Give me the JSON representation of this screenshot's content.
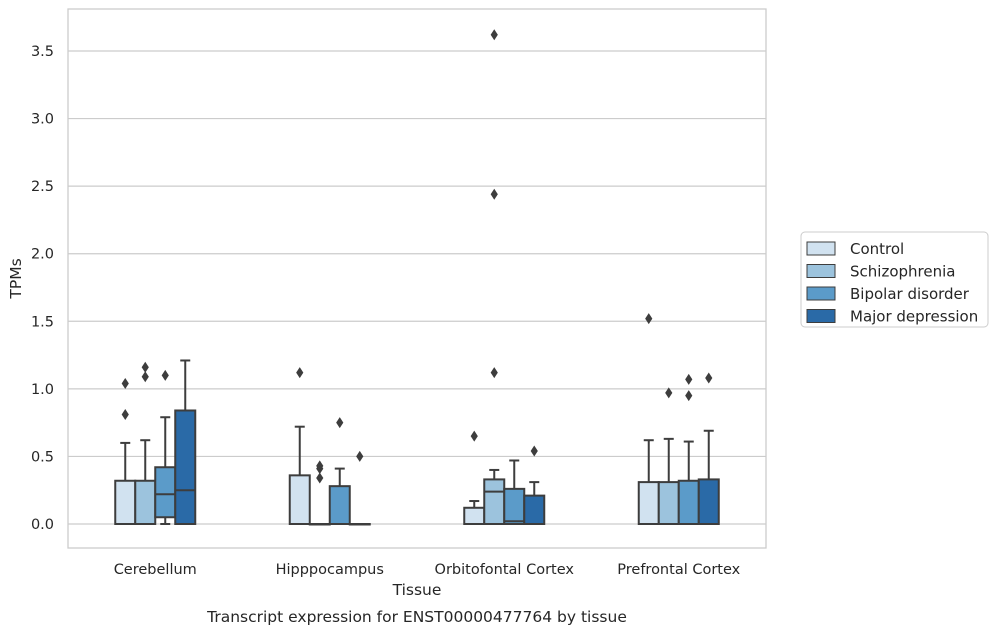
{
  "chart_data": {
    "type": "boxplot",
    "title": "Transcript expression for ENST00000477764 by tissue",
    "xlabel": "Tissue",
    "ylabel": "TPMs",
    "ylim": [
      -0.18,
      3.82
    ],
    "yticks": [
      0.0,
      0.5,
      1.0,
      1.5,
      2.0,
      2.5,
      3.0,
      3.5
    ],
    "ytick_labels": [
      "0.0",
      "0.5",
      "1.0",
      "1.5",
      "2.0",
      "2.5",
      "3.0",
      "3.5"
    ],
    "grid": true,
    "legend_position": "right",
    "categories": [
      "Cerebellum",
      "Hipppocampus",
      "Orbitofontal Cortex",
      "Prefrontal Cortex"
    ],
    "series": [
      {
        "name": "Control",
        "color": "#d1e2f0",
        "boxes": [
          {
            "min": 0.0,
            "q1": 0.0,
            "median": 0.0,
            "q3": 0.32,
            "max": 0.6,
            "outliers": [
              0.81,
              1.04
            ]
          },
          {
            "min": 0.0,
            "q1": 0.0,
            "median": 0.0,
            "q3": 0.36,
            "max": 0.72,
            "outliers": [
              1.12
            ]
          },
          {
            "min": 0.0,
            "q1": 0.0,
            "median": 0.0,
            "q3": 0.12,
            "max": 0.17,
            "outliers": [
              0.65
            ]
          },
          {
            "min": 0.0,
            "q1": 0.0,
            "median": 0.0,
            "q3": 0.31,
            "max": 0.62,
            "outliers": [
              1.52
            ]
          }
        ]
      },
      {
        "name": "Schizophrenia",
        "color": "#9cc3dd",
        "boxes": [
          {
            "min": 0.0,
            "q1": 0.0,
            "median": 0.0,
            "q3": 0.32,
            "max": 0.62,
            "outliers": [
              1.09,
              1.16
            ]
          },
          {
            "min": 0.0,
            "q1": 0.0,
            "median": 0.0,
            "q3": 0.0,
            "max": 0.0,
            "outliers": [
              0.34,
              0.41,
              0.43
            ]
          },
          {
            "min": 0.0,
            "q1": 0.0,
            "median": 0.24,
            "q3": 0.33,
            "max": 0.4,
            "outliers": [
              1.12,
              2.44,
              3.62
            ]
          },
          {
            "min": 0.0,
            "q1": 0.0,
            "median": 0.0,
            "q3": 0.31,
            "max": 0.63,
            "outliers": [
              0.97
            ]
          }
        ]
      },
      {
        "name": "Bipolar disorder",
        "color": "#5b9bc9",
        "boxes": [
          {
            "min": 0.0,
            "q1": 0.05,
            "median": 0.22,
            "q3": 0.42,
            "max": 0.79,
            "outliers": [
              1.1
            ]
          },
          {
            "min": 0.0,
            "q1": 0.0,
            "median": 0.0,
            "q3": 0.28,
            "max": 0.41,
            "outliers": [
              0.75
            ]
          },
          {
            "min": 0.0,
            "q1": 0.0,
            "median": 0.02,
            "q3": 0.26,
            "max": 0.47,
            "outliers": []
          },
          {
            "min": 0.0,
            "q1": 0.0,
            "median": 0.0,
            "q3": 0.32,
            "max": 0.61,
            "outliers": [
              0.95,
              1.07
            ]
          }
        ]
      },
      {
        "name": "Major depression",
        "color": "#2a6aa7",
        "boxes": [
          {
            "min": 0.0,
            "q1": 0.0,
            "median": 0.25,
            "q3": 0.84,
            "max": 1.21,
            "outliers": []
          },
          {
            "min": 0.0,
            "q1": 0.0,
            "median": 0.0,
            "q3": 0.0,
            "max": 0.0,
            "outliers": [
              0.5
            ]
          },
          {
            "min": 0.0,
            "q1": 0.0,
            "median": 0.0,
            "q3": 0.21,
            "max": 0.31,
            "outliers": [
              0.54
            ]
          },
          {
            "min": 0.0,
            "q1": 0.0,
            "median": 0.0,
            "q3": 0.33,
            "max": 0.69,
            "outliers": [
              1.08
            ]
          }
        ]
      }
    ]
  }
}
